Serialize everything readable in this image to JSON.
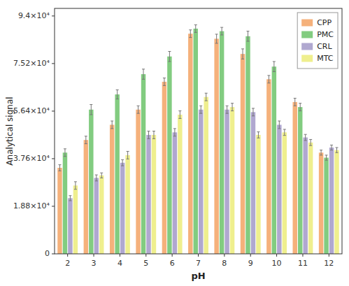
{
  "chart_data": {
    "type": "bar",
    "xlabel": "pH",
    "ylabel": "Analytical signal",
    "categories": [
      "2",
      "3",
      "4",
      "5",
      "6",
      "7",
      "8",
      "9",
      "10",
      "11",
      "12"
    ],
    "series": [
      {
        "name": "CPP",
        "color": "#F5B17B",
        "values": [
          34000,
          45000,
          51000,
          57000,
          68000,
          87000,
          85000,
          79000,
          69000,
          60000,
          40000
        ],
        "errors": [
          1200,
          1500,
          1500,
          1500,
          1500,
          1500,
          1800,
          2000,
          1500,
          1500,
          1000
        ]
      },
      {
        "name": "PMC",
        "color": "#82CC80",
        "values": [
          40000,
          57000,
          63000,
          71000,
          78000,
          89000,
          88000,
          86000,
          74000,
          58000,
          38000
        ],
        "errors": [
          1500,
          2000,
          1800,
          2000,
          2000,
          1500,
          1500,
          2000,
          2000,
          1500,
          1000
        ]
      },
      {
        "name": "CRL",
        "color": "#B0A8D0",
        "values": [
          22000,
          30000,
          36000,
          47000,
          48000,
          57000,
          57000,
          56000,
          51000,
          46000,
          42000
        ],
        "errors": [
          1000,
          1200,
          1200,
          1500,
          1500,
          1500,
          1500,
          1500,
          1500,
          1200,
          1000
        ]
      },
      {
        "name": "MTC",
        "color": "#EFEF8E",
        "values": [
          27000,
          31000,
          39000,
          47000,
          55000,
          62000,
          58000,
          47000,
          48000,
          44000,
          41000
        ],
        "errors": [
          1500,
          1000,
          1500,
          1500,
          1500,
          1500,
          1500,
          1200,
          1200,
          1200,
          1000
        ]
      }
    ],
    "ylim": [
      0,
      97000
    ],
    "yticks": [
      0,
      {
        "value": 18800,
        "label": "1.88×10⁴"
      },
      {
        "value": 37600,
        "label": "3.76×10⁴"
      },
      {
        "value": 56400,
        "label": "5.64×10⁴"
      },
      {
        "value": 75200,
        "label": "7.52×10⁴"
      },
      {
        "value": 94000,
        "label": "9.4×10⁴"
      }
    ],
    "legend": "upper right",
    "grid": false
  }
}
